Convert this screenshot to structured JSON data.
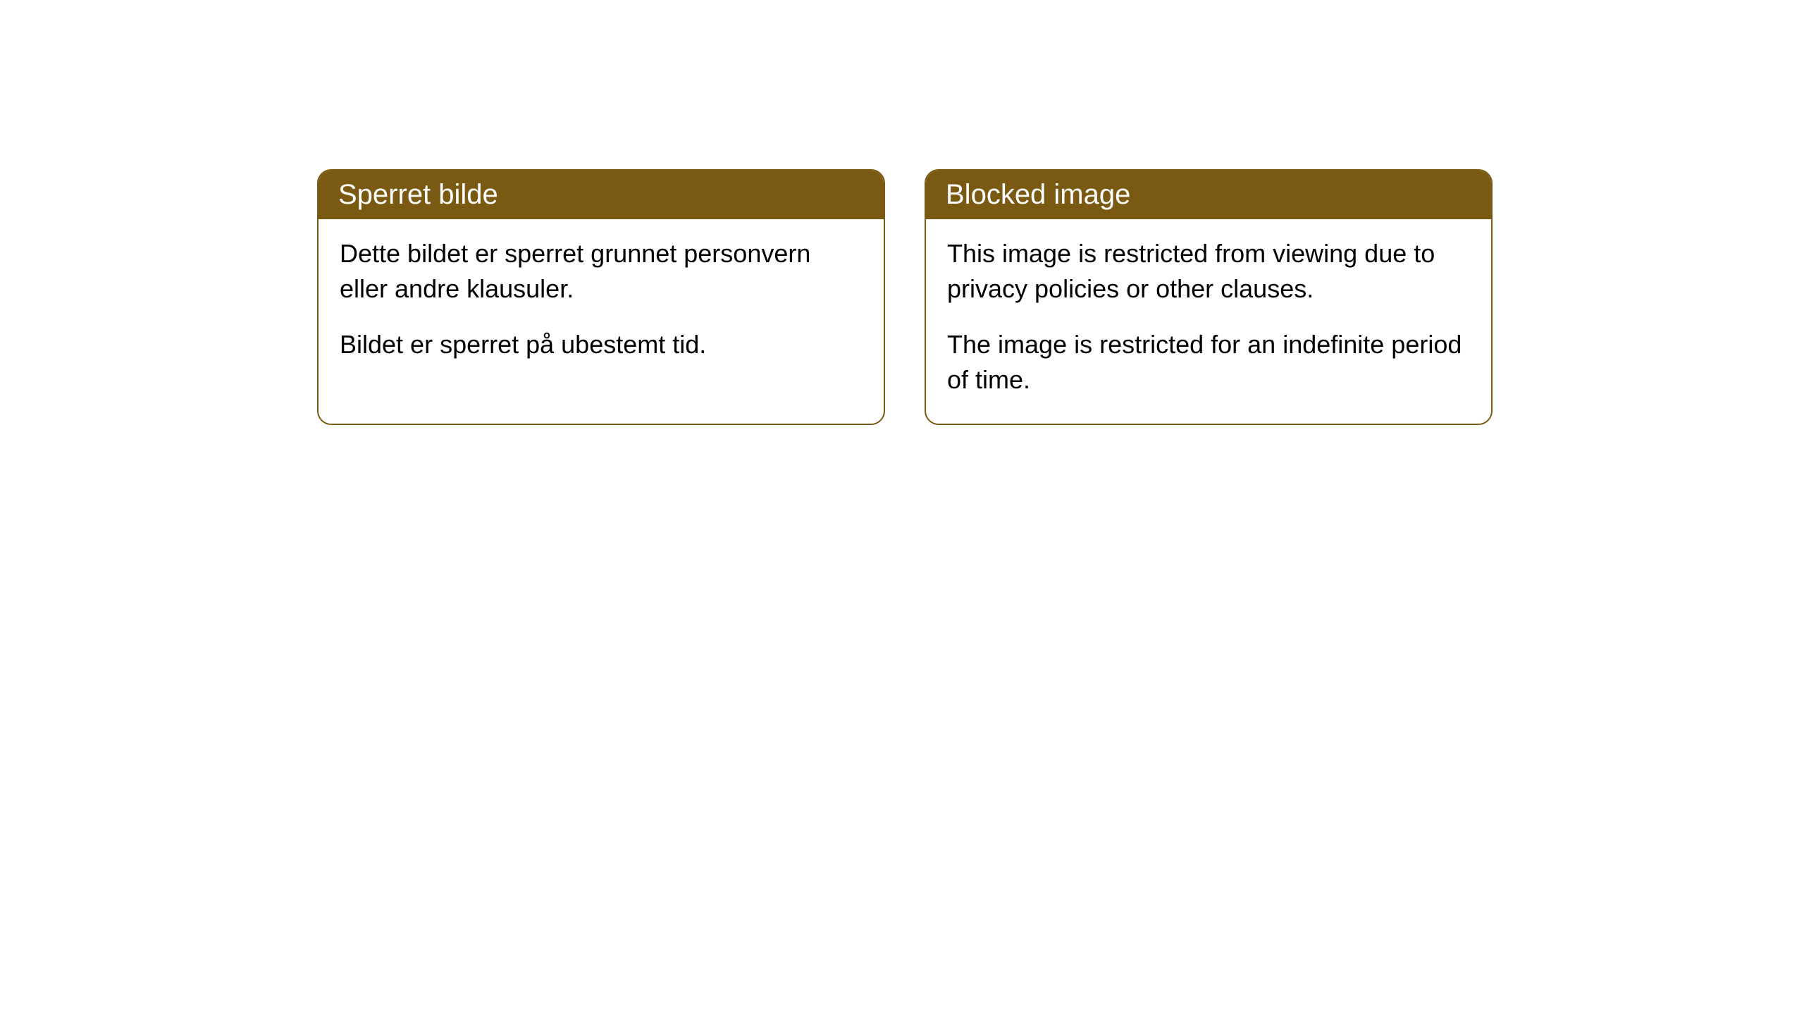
{
  "cards": [
    {
      "title": "Sperret bilde",
      "paragraph1": "Dette bildet er sperret grunnet personvern eller andre klausuler.",
      "paragraph2": "Bildet er sperret på ubestemt tid."
    },
    {
      "title": "Blocked image",
      "paragraph1": "This image is restricted from viewing due to privacy policies or other clauses.",
      "paragraph2": "The image is restricted for an indefinite period of time."
    }
  ],
  "styling": {
    "header_bg_color": "#7a5a13",
    "header_text_color": "#ffffff",
    "border_color": "#7a5a13",
    "body_bg_color": "#ffffff",
    "body_text_color": "#000000",
    "border_radius": 20,
    "header_fontsize": 40,
    "body_fontsize": 36
  }
}
